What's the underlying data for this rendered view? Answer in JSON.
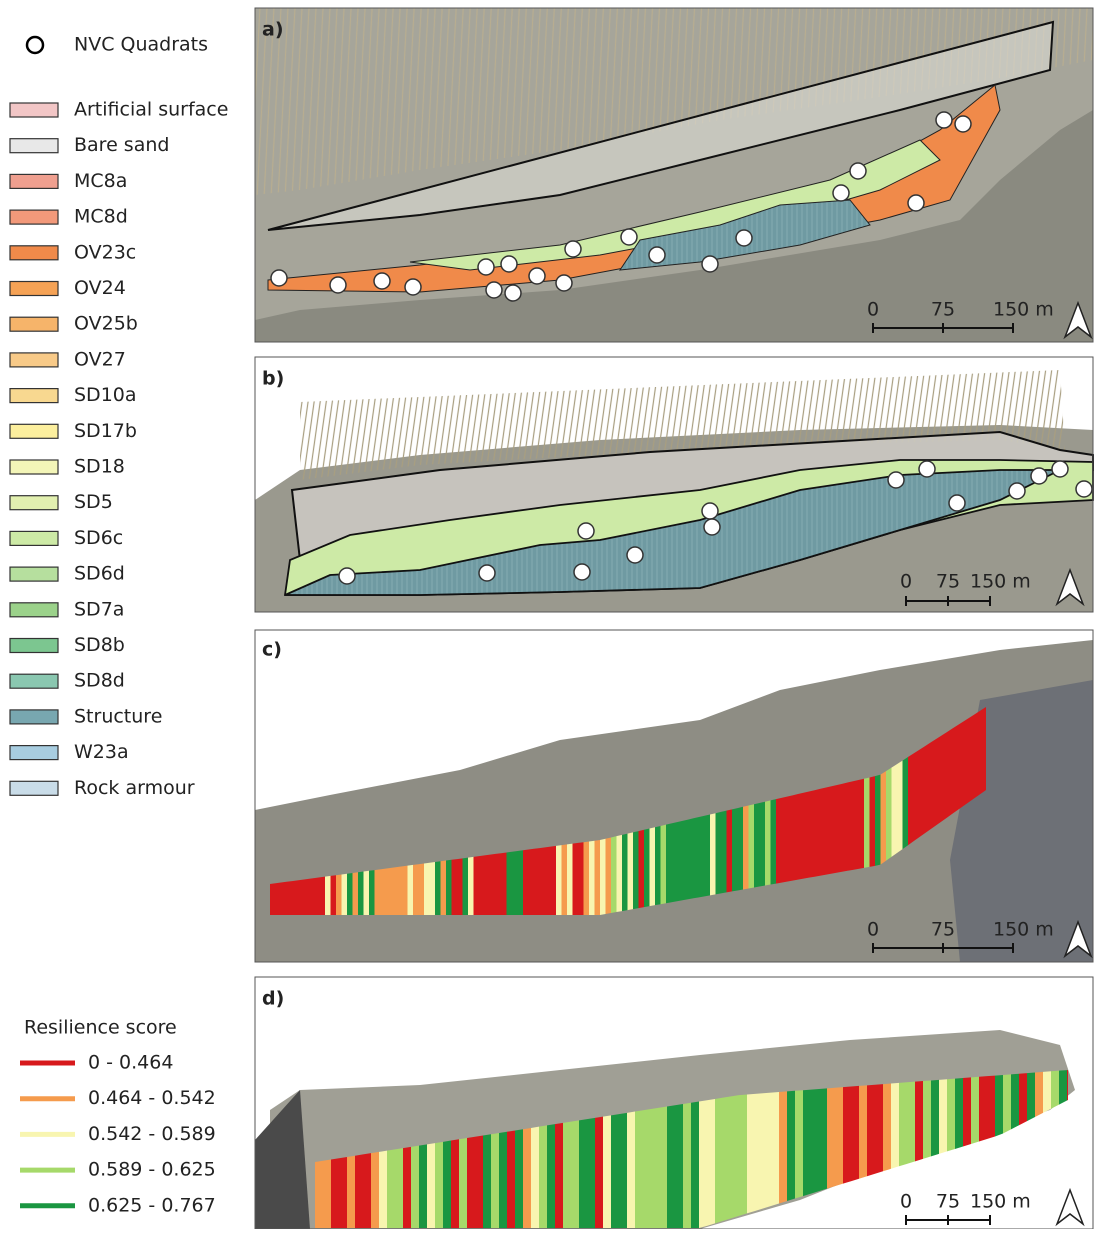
{
  "quadrat_legend": "NVC Quadrats",
  "habitat_legend": [
    {
      "label": "Artificial surface",
      "color": "#f2c6c6"
    },
    {
      "label": "Bare sand",
      "color": "#e8e8e8"
    },
    {
      "label": "MC8a",
      "color": "#ef9f8f"
    },
    {
      "label": "MC8d",
      "color": "#f2997a"
    },
    {
      "label": "OV23c",
      "color": "#f08a4a"
    },
    {
      "label": "OV24",
      "color": "#f5a255"
    },
    {
      "label": "OV25b",
      "color": "#f6b46a"
    },
    {
      "label": "OV27",
      "color": "#f8ca88"
    },
    {
      "label": "SD10a",
      "color": "#f8d890"
    },
    {
      "label": "SD17b",
      "color": "#fcef9e"
    },
    {
      "label": "SD18",
      "color": "#f3f5b8"
    },
    {
      "label": "SD5",
      "color": "#e2f0b0"
    },
    {
      "label": "SD6c",
      "color": "#cdeaa6"
    },
    {
      "label": "SD6d",
      "color": "#b6df9e"
    },
    {
      "label": "SD7a",
      "color": "#9bd28a"
    },
    {
      "label": "SD8b",
      "color": "#7cc690"
    },
    {
      "label": "SD8d",
      "color": "#8ac7b0"
    },
    {
      "label": "Structure",
      "color": "#78a7b0"
    },
    {
      "label": "W23a",
      "color": "#a8cde0"
    },
    {
      "label": "Rock armour",
      "color": "#c9dce8"
    }
  ],
  "resilience_legend": {
    "title": "Resilience score",
    "classes": [
      {
        "label": "0 - 0.464",
        "color": "#d7191c"
      },
      {
        "label": "0.464 - 0.542",
        "color": "#f59b4d"
      },
      {
        "label": "0.542 - 0.589",
        "color": "#f8f5b0"
      },
      {
        "label": "0.589 - 0.625",
        "color": "#a6d96a"
      },
      {
        "label": "0.625 - 0.767",
        "color": "#1a9641"
      }
    ]
  },
  "panels": [
    {
      "label": "a)",
      "scale": [
        "0",
        "75",
        "150 m"
      ]
    },
    {
      "label": "b)",
      "scale": [
        "0",
        "75",
        "150 m"
      ]
    },
    {
      "label": "c)",
      "scale": [
        "0",
        "75",
        "150 m"
      ]
    },
    {
      "label": "d)",
      "scale": [
        "0",
        "75",
        "150 m"
      ]
    }
  ]
}
